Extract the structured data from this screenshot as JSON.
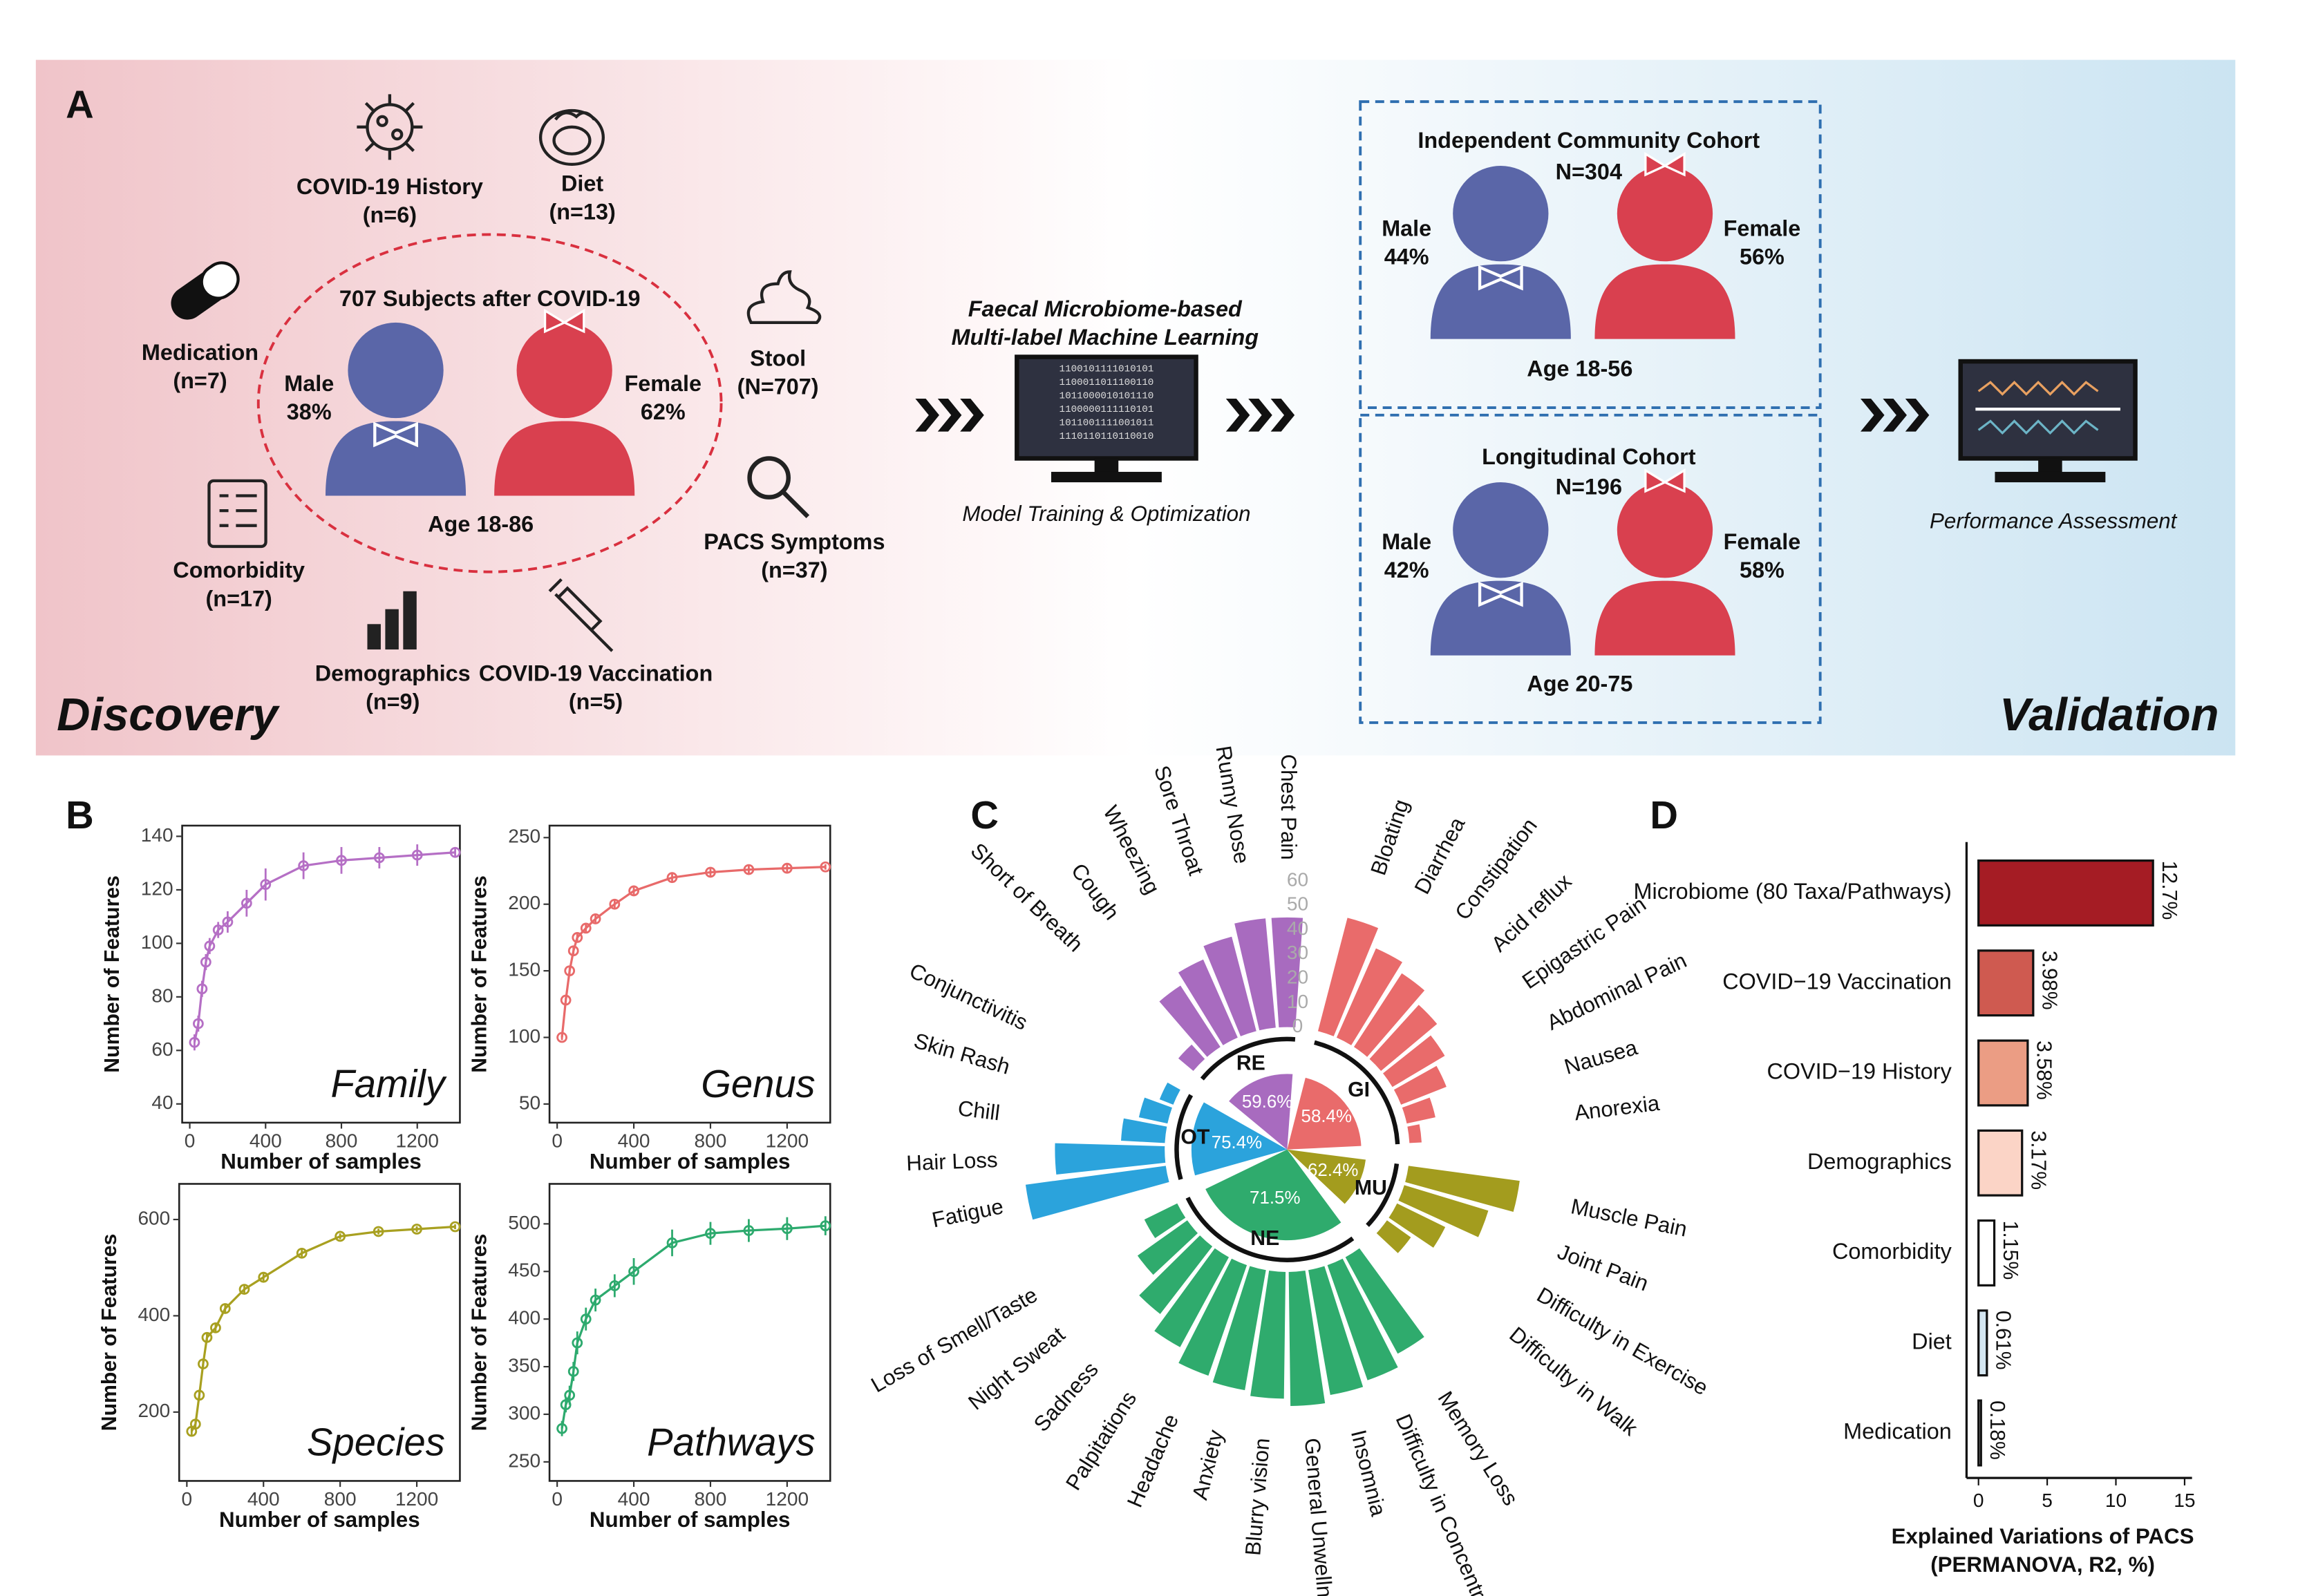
{
  "panel_a": {
    "label": "A",
    "left_title": "Discovery",
    "right_title": "Validation",
    "factors": [
      {
        "name": "COVID-19 History",
        "n": "(n=6)"
      },
      {
        "name": "Diet",
        "n": "(n=13)"
      },
      {
        "name": "Medication",
        "n": "(n=7)"
      },
      {
        "name": "Stool",
        "n": "(N=707)"
      },
      {
        "name": "Comorbidity",
        "n": "(n=17)"
      },
      {
        "name": "PACS Symptoms",
        "n": "(n=37)"
      },
      {
        "name": "Demographics",
        "n": "(n=9)"
      },
      {
        "name": "COVID-19 Vaccination",
        "n": "(n=5)"
      }
    ],
    "subjects": {
      "title": "707 Subjects after COVID-19",
      "male": "Male",
      "male_pct": "38%",
      "female": "Female",
      "female_pct": "62%",
      "age": "Age 18-86"
    },
    "model": {
      "line1": "Faecal Microbiome-based",
      "line2": "Multi-label Machine Learning",
      "caption": "Model Training & Optimization",
      "code_lines": [
        "1100101111010101",
        "1100011011100110",
        "1011000010101110",
        "1100000111110101",
        "1011001111001011",
        "1110110110110010"
      ]
    },
    "cohorts": [
      {
        "name": "Independent Community Cohort",
        "n": "N=304",
        "male": "Male",
        "male_pct": "44%",
        "female": "Female",
        "female_pct": "56%",
        "age": "Age 18-56"
      },
      {
        "name": "Longitudinal Cohort",
        "n": "N=196",
        "male": "Male",
        "male_pct": "42%",
        "female": "Female",
        "female_pct": "58%",
        "age": "Age 20-75"
      }
    ],
    "assessment": "Performance Assessment"
  },
  "chart_data": [
    {
      "type": "line",
      "panel": "B",
      "annotation": "Family",
      "ylabel": "Number of Features",
      "xlabel": "Number of samples",
      "color": "#b56fc5",
      "x": [
        25,
        45,
        65,
        85,
        105,
        150,
        200,
        300,
        400,
        600,
        800,
        1000,
        1200,
        1400
      ],
      "values": [
        63,
        70,
        83,
        93,
        99,
        105,
        108,
        115,
        122,
        129,
        131,
        132,
        133,
        134
      ],
      "errors": [
        3,
        3,
        3,
        3,
        3,
        3,
        4,
        5,
        6,
        5,
        5,
        4,
        4,
        2
      ],
      "xlim": [
        -40,
        1425
      ],
      "xticks": [
        0,
        400,
        800,
        1200
      ],
      "ylim": [
        33,
        144
      ],
      "yticks": [
        40,
        60,
        80,
        100,
        120,
        140
      ]
    },
    {
      "type": "line",
      "annotation": "Genus",
      "ylabel": "Number of Features",
      "xlabel": "Number of samples",
      "color": "#e86a6a",
      "x": [
        25,
        45,
        65,
        85,
        105,
        150,
        200,
        300,
        400,
        600,
        800,
        1000,
        1200,
        1400
      ],
      "values": [
        100,
        128,
        150,
        165,
        175,
        182,
        189,
        200,
        210,
        220,
        224,
        226,
        227,
        228
      ],
      "errors": [
        2,
        2,
        3,
        3,
        3,
        3,
        3,
        3,
        3,
        4,
        3,
        3,
        3,
        2
      ],
      "xlim": [
        -40,
        1425
      ],
      "xticks": [
        0,
        400,
        800,
        1200
      ],
      "ylim": [
        36,
        259
      ],
      "yticks": [
        50,
        100,
        150,
        200,
        250
      ]
    },
    {
      "type": "line",
      "annotation": "Species",
      "ylabel": "Number of Features",
      "xlabel": "Number of samples",
      "color": "#a8a020",
      "x": [
        25,
        45,
        65,
        85,
        105,
        150,
        200,
        300,
        400,
        600,
        800,
        1000,
        1200,
        1400
      ],
      "values": [
        160,
        175,
        235,
        300,
        355,
        375,
        415,
        455,
        480,
        530,
        565,
        575,
        580,
        585
      ],
      "errors": [
        10,
        10,
        10,
        10,
        8,
        8,
        8,
        8,
        8,
        8,
        6,
        6,
        6,
        5
      ],
      "xlim": [
        -40,
        1425
      ],
      "xticks": [
        0,
        400,
        800,
        1200
      ],
      "ylim": [
        57,
        674
      ],
      "yticks": [
        200,
        400,
        600
      ]
    },
    {
      "type": "line",
      "annotation": "Pathways",
      "ylabel": "Number of Features",
      "xlabel": "Number of samples",
      "color": "#2daa6e",
      "x": [
        25,
        45,
        65,
        85,
        105,
        150,
        200,
        300,
        400,
        600,
        800,
        1000,
        1200,
        1400
      ],
      "values": [
        285,
        310,
        320,
        345,
        375,
        400,
        420,
        435,
        450,
        480,
        490,
        493,
        495,
        498
      ],
      "errors": [
        8,
        8,
        10,
        10,
        12,
        12,
        12,
        12,
        14,
        14,
        12,
        12,
        12,
        10
      ],
      "xlim": [
        -40,
        1425
      ],
      "xticks": [
        0,
        400,
        800,
        1200
      ],
      "ylim": [
        230,
        542
      ],
      "yticks": [
        250,
        300,
        350,
        400,
        450,
        500
      ]
    },
    {
      "type": "polar_bar",
      "panel": "C",
      "rlim": [
        0,
        60
      ],
      "rticks": [
        0,
        10,
        20,
        30,
        40,
        50,
        60
      ],
      "groups": [
        {
          "name": "GI",
          "value": 58.4,
          "value_label": "58.4%",
          "color": "#e96b6b",
          "categories": [
            "Bloating",
            "Diarrhea",
            "Constipation",
            "Acid reflux",
            "Epigastric Pain",
            "Abdominal Pain",
            "Nausea",
            "Anorexia"
          ],
          "values": [
            48,
            40,
            36,
            30,
            25,
            20,
            12,
            5
          ]
        },
        {
          "name": "MU",
          "value": 62.4,
          "value_label": "62.4%",
          "color": "#a39c1e",
          "categories": [
            "Muscle Pain",
            "Joint Pain",
            "Difficulty in Exercise",
            "Difficulty in Walk"
          ],
          "values": [
            46,
            36,
            22,
            12
          ]
        },
        {
          "name": "NE",
          "value": 71.5,
          "value_label": "71.5%",
          "color": "#2fab6d",
          "categories": [
            "Memory Loss",
            "Difficulty in Concentration",
            "Insomnia",
            "General Unwellness",
            "Blurry vision",
            "Anxiety",
            "Headache",
            "Palpitations",
            "Sadness",
            "Night Sweat",
            "Loss of Smell/Taste"
          ],
          "values": [
            45,
            50,
            52,
            55,
            52,
            50,
            48,
            42,
            35,
            25,
            15
          ]
        },
        {
          "name": "OT",
          "value": 75.4,
          "value_label": "75.4%",
          "color": "#2ba3dc",
          "categories": [
            "Fatigue",
            "Hair Loss",
            "Chill",
            "Skin Rash",
            "Conjunctivitis"
          ],
          "values": [
            58,
            45,
            18,
            12,
            6
          ]
        },
        {
          "name": "RE",
          "value": 59.6,
          "value_label": "59.6%",
          "color": "#a86bbf",
          "categories": [
            "Short of Breath",
            "Cough",
            "Wheezing",
            "Sore Throat",
            "Runny Nose",
            "Chest Pain"
          ],
          "values": [
            8,
            30,
            35,
            40,
            45,
            45
          ]
        }
      ]
    },
    {
      "type": "hbar",
      "panel": "D",
      "categories": [
        "Microbiome (80 Taxa/Pathways)",
        "COVID−19 Vaccination",
        "COVID−19 History",
        "Demographics",
        "Comorbidity",
        "Diet",
        "Medication"
      ],
      "values": [
        12.7,
        3.98,
        3.58,
        3.17,
        1.15,
        0.61,
        0.18
      ],
      "value_labels": [
        "12.7%",
        "3.98%",
        "3.58%",
        "3.17%",
        "1.15%",
        "0.61%",
        "0.18%"
      ],
      "colors": [
        "#a51c24",
        "#cf5a50",
        "#eb9d84",
        "#fbd4c6",
        "#ffffff",
        "#d4e6f1",
        "#ffffff"
      ],
      "xlim": [
        -0.87,
        15.54
      ],
      "xticks": [
        0,
        5,
        10,
        15
      ],
      "xlabel": [
        "Explained Variations of PACS",
        "(PERMANOVA, R2, %)"
      ]
    }
  ]
}
